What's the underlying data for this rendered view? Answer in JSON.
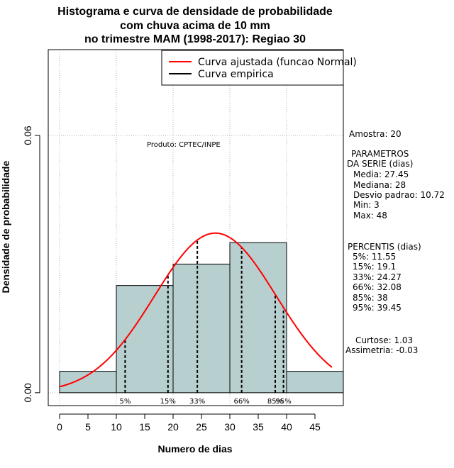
{
  "chart_data": {
    "type": "bar",
    "title_lines": [
      "Histograma e curva de densidade de probabilidade",
      "com chuva acima de 10 mm",
      "no trimestre MAM (1998-2017): Regiao 30"
    ],
    "xlabel": "Numero de dias",
    "ylabel": "Densidade de probabilidade",
    "xlim": [
      -2,
      50
    ],
    "ylim": [
      -0.003,
      0.08
    ],
    "x_ticks": [
      0,
      5,
      10,
      15,
      20,
      25,
      30,
      35,
      40,
      45
    ],
    "y_ticks": [
      0.0,
      0.06
    ],
    "y_tick_labels": [
      "0.00",
      "0.06"
    ],
    "x_grid": [
      0,
      10,
      20,
      30,
      40
    ],
    "y_grid": [
      0.0,
      0.06
    ],
    "bins": [
      {
        "from": 0,
        "to": 10,
        "density": 0.005
      },
      {
        "from": 10,
        "to": 20,
        "density": 0.025
      },
      {
        "from": 20,
        "to": 30,
        "density": 0.03
      },
      {
        "from": 30,
        "to": 40,
        "density": 0.035
      },
      {
        "from": 40,
        "to": 50,
        "density": 0.005
      }
    ],
    "bar_color": "#b8cfcf",
    "normal_curve": {
      "mean": 27.45,
      "sd": 10.72,
      "x_from": 0,
      "x_to": 48,
      "color": "#ff0000"
    },
    "percentile_lines": [
      {
        "label": "5%",
        "value": 11.55
      },
      {
        "label": "15%",
        "value": 19.1
      },
      {
        "label": "33%",
        "value": 24.27
      },
      {
        "label": "66%",
        "value": 32.08
      },
      {
        "label": "85%",
        "value": 38
      },
      {
        "label": "95%",
        "value": 39.45
      }
    ],
    "legend": [
      {
        "label": "Curva ajustada (funcao Normal)",
        "color": "#ff0000"
      },
      {
        "label": "Curva empirica",
        "color": "#000000"
      }
    ],
    "product_label": "Produto: CPTEC/INPE"
  },
  "side_panel": {
    "amostra": "Amostra: 20",
    "params_header": "PARAMETROS",
    "params_sub": "DA SERIE (dias)",
    "params": [
      "Media: 27.45",
      "Mediana: 28",
      "Desvio padrao: 10.72",
      "Min: 3",
      "Max: 48"
    ],
    "percentis_header": "PERCENTIS (dias)",
    "percentis": [
      "5%: 11.55",
      "15%: 19.1",
      "33%: 24.27",
      "66%: 32.08",
      "85%: 38",
      "95%: 39.45"
    ],
    "curtose": "Curtose: 1.03",
    "assimetria": "Assimetria: -0.03"
  }
}
